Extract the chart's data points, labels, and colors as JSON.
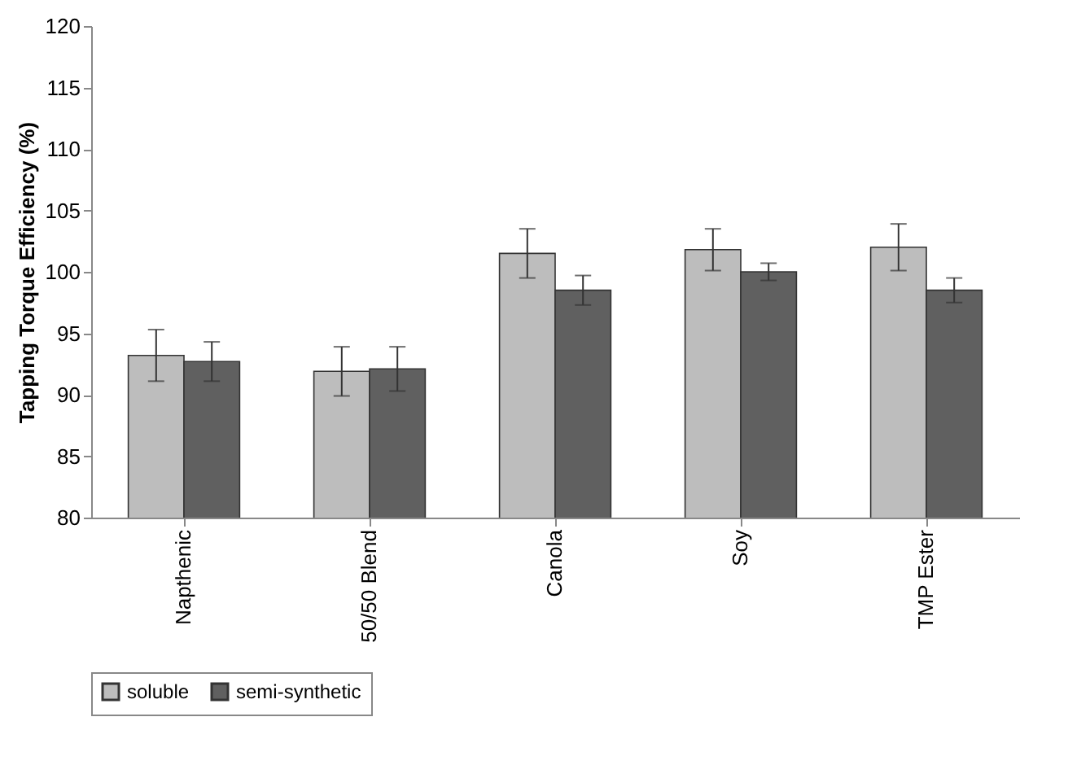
{
  "chart_data": {
    "type": "bar",
    "ylabel": "Tapping Torque Efficiency (%)",
    "categories": [
      "Napthenic",
      "50/50 Blend",
      "Canola",
      "Soy",
      "TMP Ester"
    ],
    "series": [
      {
        "name": "soluble",
        "color": "#bdbdbd",
        "values": [
          93.2,
          91.9,
          101.5,
          101.8,
          102.0
        ],
        "errors": [
          2.1,
          2.0,
          2.0,
          1.7,
          1.9
        ]
      },
      {
        "name": "semi-synthetic",
        "color": "#606060",
        "values": [
          92.7,
          92.1,
          98.5,
          100.0,
          98.5
        ],
        "errors": [
          1.6,
          1.8,
          1.2,
          0.7,
          1.0
        ]
      }
    ],
    "ylim": [
      80,
      120
    ],
    "yticks": [
      80,
      85,
      90,
      95,
      100,
      105,
      110,
      115,
      120
    ],
    "grid": false,
    "legend": "bottom"
  }
}
